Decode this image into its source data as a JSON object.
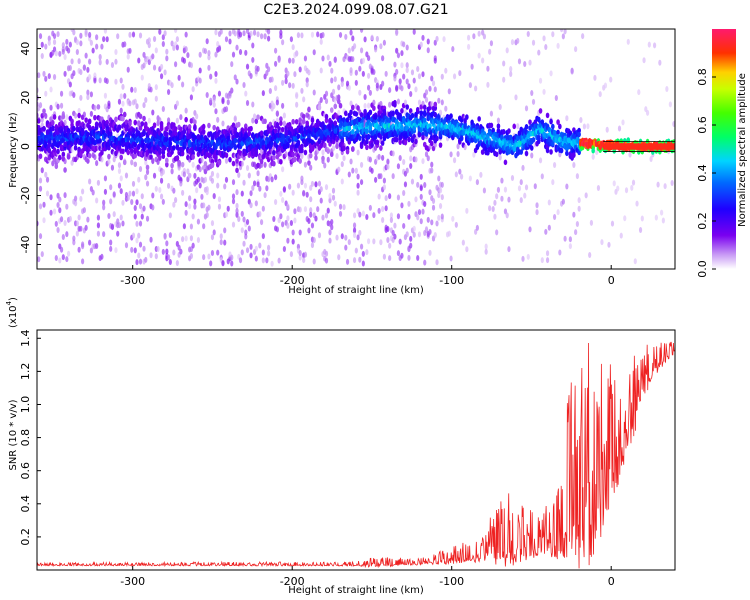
{
  "title": "C2E3.2024.099.08.07.G21",
  "chart_data": [
    {
      "type": "heatmap",
      "xlabel": "Height of straight line (km)",
      "ylabel": "Frequency (Hz)",
      "xlim": [
        -360,
        40
      ],
      "ylim": [
        -50,
        48
      ],
      "xticks": [
        -300,
        -200,
        -100,
        0
      ],
      "yticks": [
        -40,
        -20,
        0,
        20,
        40
      ],
      "colorbar": {
        "label": "Normalized spectral amplitude",
        "range": [
          0,
          1
        ],
        "ticks": [
          "0.0",
          "0.2",
          "0.4",
          "0.6",
          "0.8"
        ]
      },
      "ridge_track": [
        {
          "x": -360,
          "y": 3
        },
        {
          "x": -320,
          "y": 4
        },
        {
          "x": -280,
          "y": 2
        },
        {
          "x": -240,
          "y": 1
        },
        {
          "x": -200,
          "y": 3
        },
        {
          "x": -170,
          "y": 7
        },
        {
          "x": -150,
          "y": 8
        },
        {
          "x": -120,
          "y": 9
        },
        {
          "x": -100,
          "y": 8
        },
        {
          "x": -80,
          "y": 4
        },
        {
          "x": -60,
          "y": 0
        },
        {
          "x": -45,
          "y": 7
        },
        {
          "x": -30,
          "y": 2
        },
        {
          "x": -10,
          "y": 1
        },
        {
          "x": 10,
          "y": 0
        },
        {
          "x": 40,
          "y": 0
        }
      ]
    },
    {
      "type": "line",
      "xlabel": "Height of straight line (km)",
      "ylabel": "SNR (10 * v/v)",
      "scale_label": "(x10",
      "scale_exp": "4",
      "xlim": [
        -360,
        40
      ],
      "ylim": [
        0,
        1.45
      ],
      "xticks": [
        -300,
        -200,
        -100,
        0
      ],
      "yticks": [
        0.2,
        0.4,
        0.6,
        0.8,
        1.0,
        1.2,
        1.4
      ],
      "series": [
        {
          "color": "#ee2222",
          "envelope": [
            {
              "x": -360,
              "base": 0.03,
              "amp": 0.015
            },
            {
              "x": -160,
              "base": 0.03,
              "amp": 0.02
            },
            {
              "x": -150,
              "base": 0.03,
              "amp": 0.05
            },
            {
              "x": -120,
              "base": 0.04,
              "amp": 0.03
            },
            {
              "x": -100,
              "base": 0.06,
              "amp": 0.08
            },
            {
              "x": -90,
              "base": 0.07,
              "amp": 0.12
            },
            {
              "x": -80,
              "base": 0.1,
              "amp": 0.18
            },
            {
              "x": -65,
              "base": 0.12,
              "amp": 0.35
            },
            {
              "x": -55,
              "base": 0.14,
              "amp": 0.3
            },
            {
              "x": -45,
              "base": 0.14,
              "amp": 0.2
            },
            {
              "x": -35,
              "base": 0.16,
              "amp": 0.3
            },
            {
              "x": -25,
              "base": 0.3,
              "amp": 0.9
            },
            {
              "x": -15,
              "base": 0.3,
              "amp": 1.1
            },
            {
              "x": -5,
              "base": 0.45,
              "amp": 0.8
            },
            {
              "x": 5,
              "base": 0.7,
              "amp": 0.55
            },
            {
              "x": 15,
              "base": 0.95,
              "amp": 0.4
            },
            {
              "x": 25,
              "base": 1.2,
              "amp": 0.18
            },
            {
              "x": 40,
              "base": 1.33,
              "amp": 0.05
            }
          ]
        }
      ]
    }
  ]
}
